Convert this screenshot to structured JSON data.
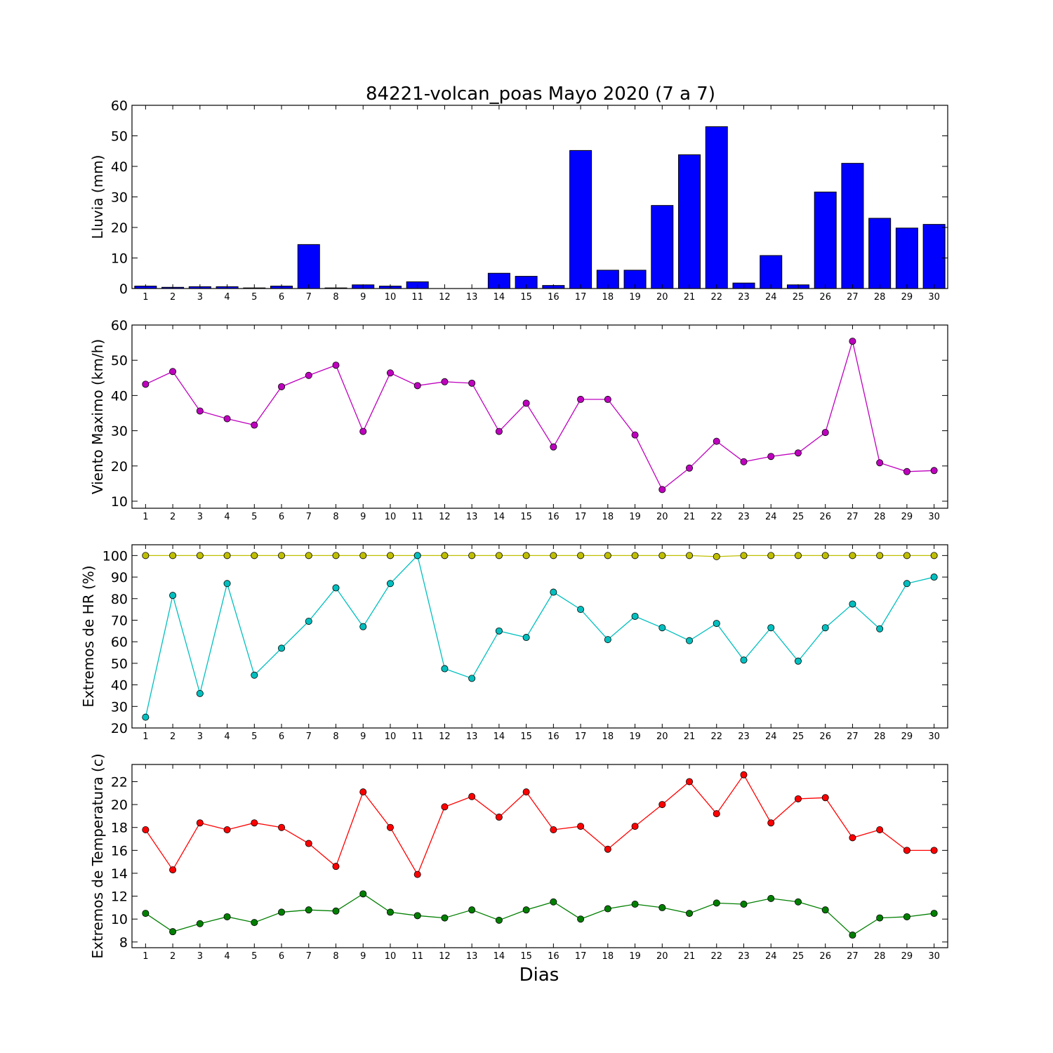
{
  "figure": {
    "title": "84221-volcan_poas Mayo 2020  (7 a 7)",
    "xlabel": "Dias"
  },
  "chart_data": [
    {
      "type": "bar",
      "ylabel": "Lluvia (mm)",
      "ylim": [
        0,
        60
      ],
      "yticks": [
        0,
        10,
        20,
        30,
        40,
        50,
        60
      ],
      "categories": [
        "1",
        "2",
        "3",
        "4",
        "5",
        "6",
        "7",
        "8",
        "9",
        "10",
        "11",
        "12",
        "13",
        "14",
        "15",
        "16",
        "17",
        "18",
        "19",
        "20",
        "21",
        "22",
        "23",
        "24",
        "25",
        "26",
        "27",
        "28",
        "29",
        "30"
      ],
      "series": [
        {
          "color": "#0000ff",
          "values": [
            0.8,
            0.4,
            0.6,
            0.6,
            0.2,
            0.8,
            14.4,
            0.2,
            1.2,
            0.8,
            2.2,
            0.0,
            0.0,
            5.0,
            4.0,
            1.0,
            45.2,
            6.0,
            6.0,
            27.2,
            43.8,
            53.0,
            1.8,
            10.8,
            1.2,
            31.6,
            41.0,
            23.0,
            19.8,
            21.0
          ]
        }
      ]
    },
    {
      "type": "line",
      "ylabel": "Viento Maximo (km/h)",
      "ylim": [
        8,
        60
      ],
      "yticks": [
        10,
        20,
        30,
        40,
        50,
        60
      ],
      "categories": [
        "1",
        "2",
        "3",
        "4",
        "5",
        "6",
        "7",
        "8",
        "9",
        "10",
        "11",
        "12",
        "13",
        "14",
        "15",
        "16",
        "17",
        "18",
        "19",
        "20",
        "21",
        "22",
        "23",
        "24",
        "25",
        "26",
        "27",
        "28",
        "29",
        "30"
      ],
      "series": [
        {
          "color": "#bf00bf",
          "values": [
            43.2,
            46.8,
            35.6,
            33.4,
            31.6,
            42.5,
            45.7,
            48.6,
            29.8,
            46.4,
            42.8,
            43.9,
            43.5,
            29.8,
            37.8,
            25.4,
            38.9,
            38.9,
            28.8,
            13.3,
            19.4,
            27.0,
            21.2,
            22.7,
            23.7,
            29.5,
            55.4,
            20.9,
            18.4,
            18.7
          ]
        }
      ]
    },
    {
      "type": "line",
      "ylabel": "Extremos de HR (%)",
      "ylim": [
        20,
        105
      ],
      "yticks": [
        20,
        30,
        40,
        50,
        60,
        70,
        80,
        90,
        100
      ],
      "categories": [
        "1",
        "2",
        "3",
        "4",
        "5",
        "6",
        "7",
        "8",
        "9",
        "10",
        "11",
        "12",
        "13",
        "14",
        "15",
        "16",
        "17",
        "18",
        "19",
        "20",
        "21",
        "22",
        "23",
        "24",
        "25",
        "26",
        "27",
        "28",
        "29",
        "30"
      ],
      "series": [
        {
          "color": "#bfbf00",
          "values": [
            100,
            100,
            100,
            100,
            100,
            100,
            100,
            100,
            100,
            100,
            100,
            100,
            100,
            100,
            100,
            100,
            100,
            100,
            100,
            100,
            100,
            99.5,
            100,
            100,
            100,
            100,
            100,
            100,
            100,
            100
          ]
        },
        {
          "color": "#00bfbf",
          "values": [
            25,
            81.5,
            36,
            87,
            44.5,
            57,
            69.5,
            85,
            67,
            87,
            100,
            47.5,
            43,
            65,
            62,
            83,
            75,
            61,
            71.8,
            66.5,
            60.5,
            68.5,
            51.5,
            66.5,
            51,
            66.5,
            77.5,
            66,
            87,
            90
          ]
        }
      ]
    },
    {
      "type": "line",
      "ylabel": "Extremos de Temperatura (c)",
      "ylim": [
        7.5,
        23.5
      ],
      "yticks": [
        8,
        10,
        12,
        14,
        16,
        18,
        20,
        22
      ],
      "categories": [
        "1",
        "2",
        "3",
        "4",
        "5",
        "6",
        "7",
        "8",
        "9",
        "10",
        "11",
        "12",
        "13",
        "14",
        "15",
        "16",
        "17",
        "18",
        "19",
        "20",
        "21",
        "22",
        "23",
        "24",
        "25",
        "26",
        "27",
        "28",
        "29",
        "30"
      ],
      "series": [
        {
          "color": "#ff0000",
          "values": [
            17.8,
            14.3,
            18.4,
            17.8,
            18.4,
            18.0,
            16.6,
            14.6,
            21.1,
            18.0,
            13.9,
            19.8,
            20.7,
            18.9,
            21.1,
            17.8,
            18.1,
            16.1,
            18.1,
            20.0,
            22.0,
            19.2,
            22.6,
            18.4,
            20.5,
            20.6,
            17.1,
            17.8,
            16.0,
            16.0
          ]
        },
        {
          "color": "#007f00",
          "values": [
            10.5,
            8.9,
            9.6,
            10.2,
            9.7,
            10.6,
            10.8,
            10.7,
            12.2,
            10.6,
            10.3,
            10.1,
            10.8,
            9.9,
            10.8,
            11.5,
            10.0,
            10.9,
            11.3,
            11.0,
            10.5,
            11.4,
            11.3,
            11.8,
            11.5,
            10.8,
            8.6,
            10.1,
            10.2,
            10.5
          ]
        }
      ]
    }
  ]
}
